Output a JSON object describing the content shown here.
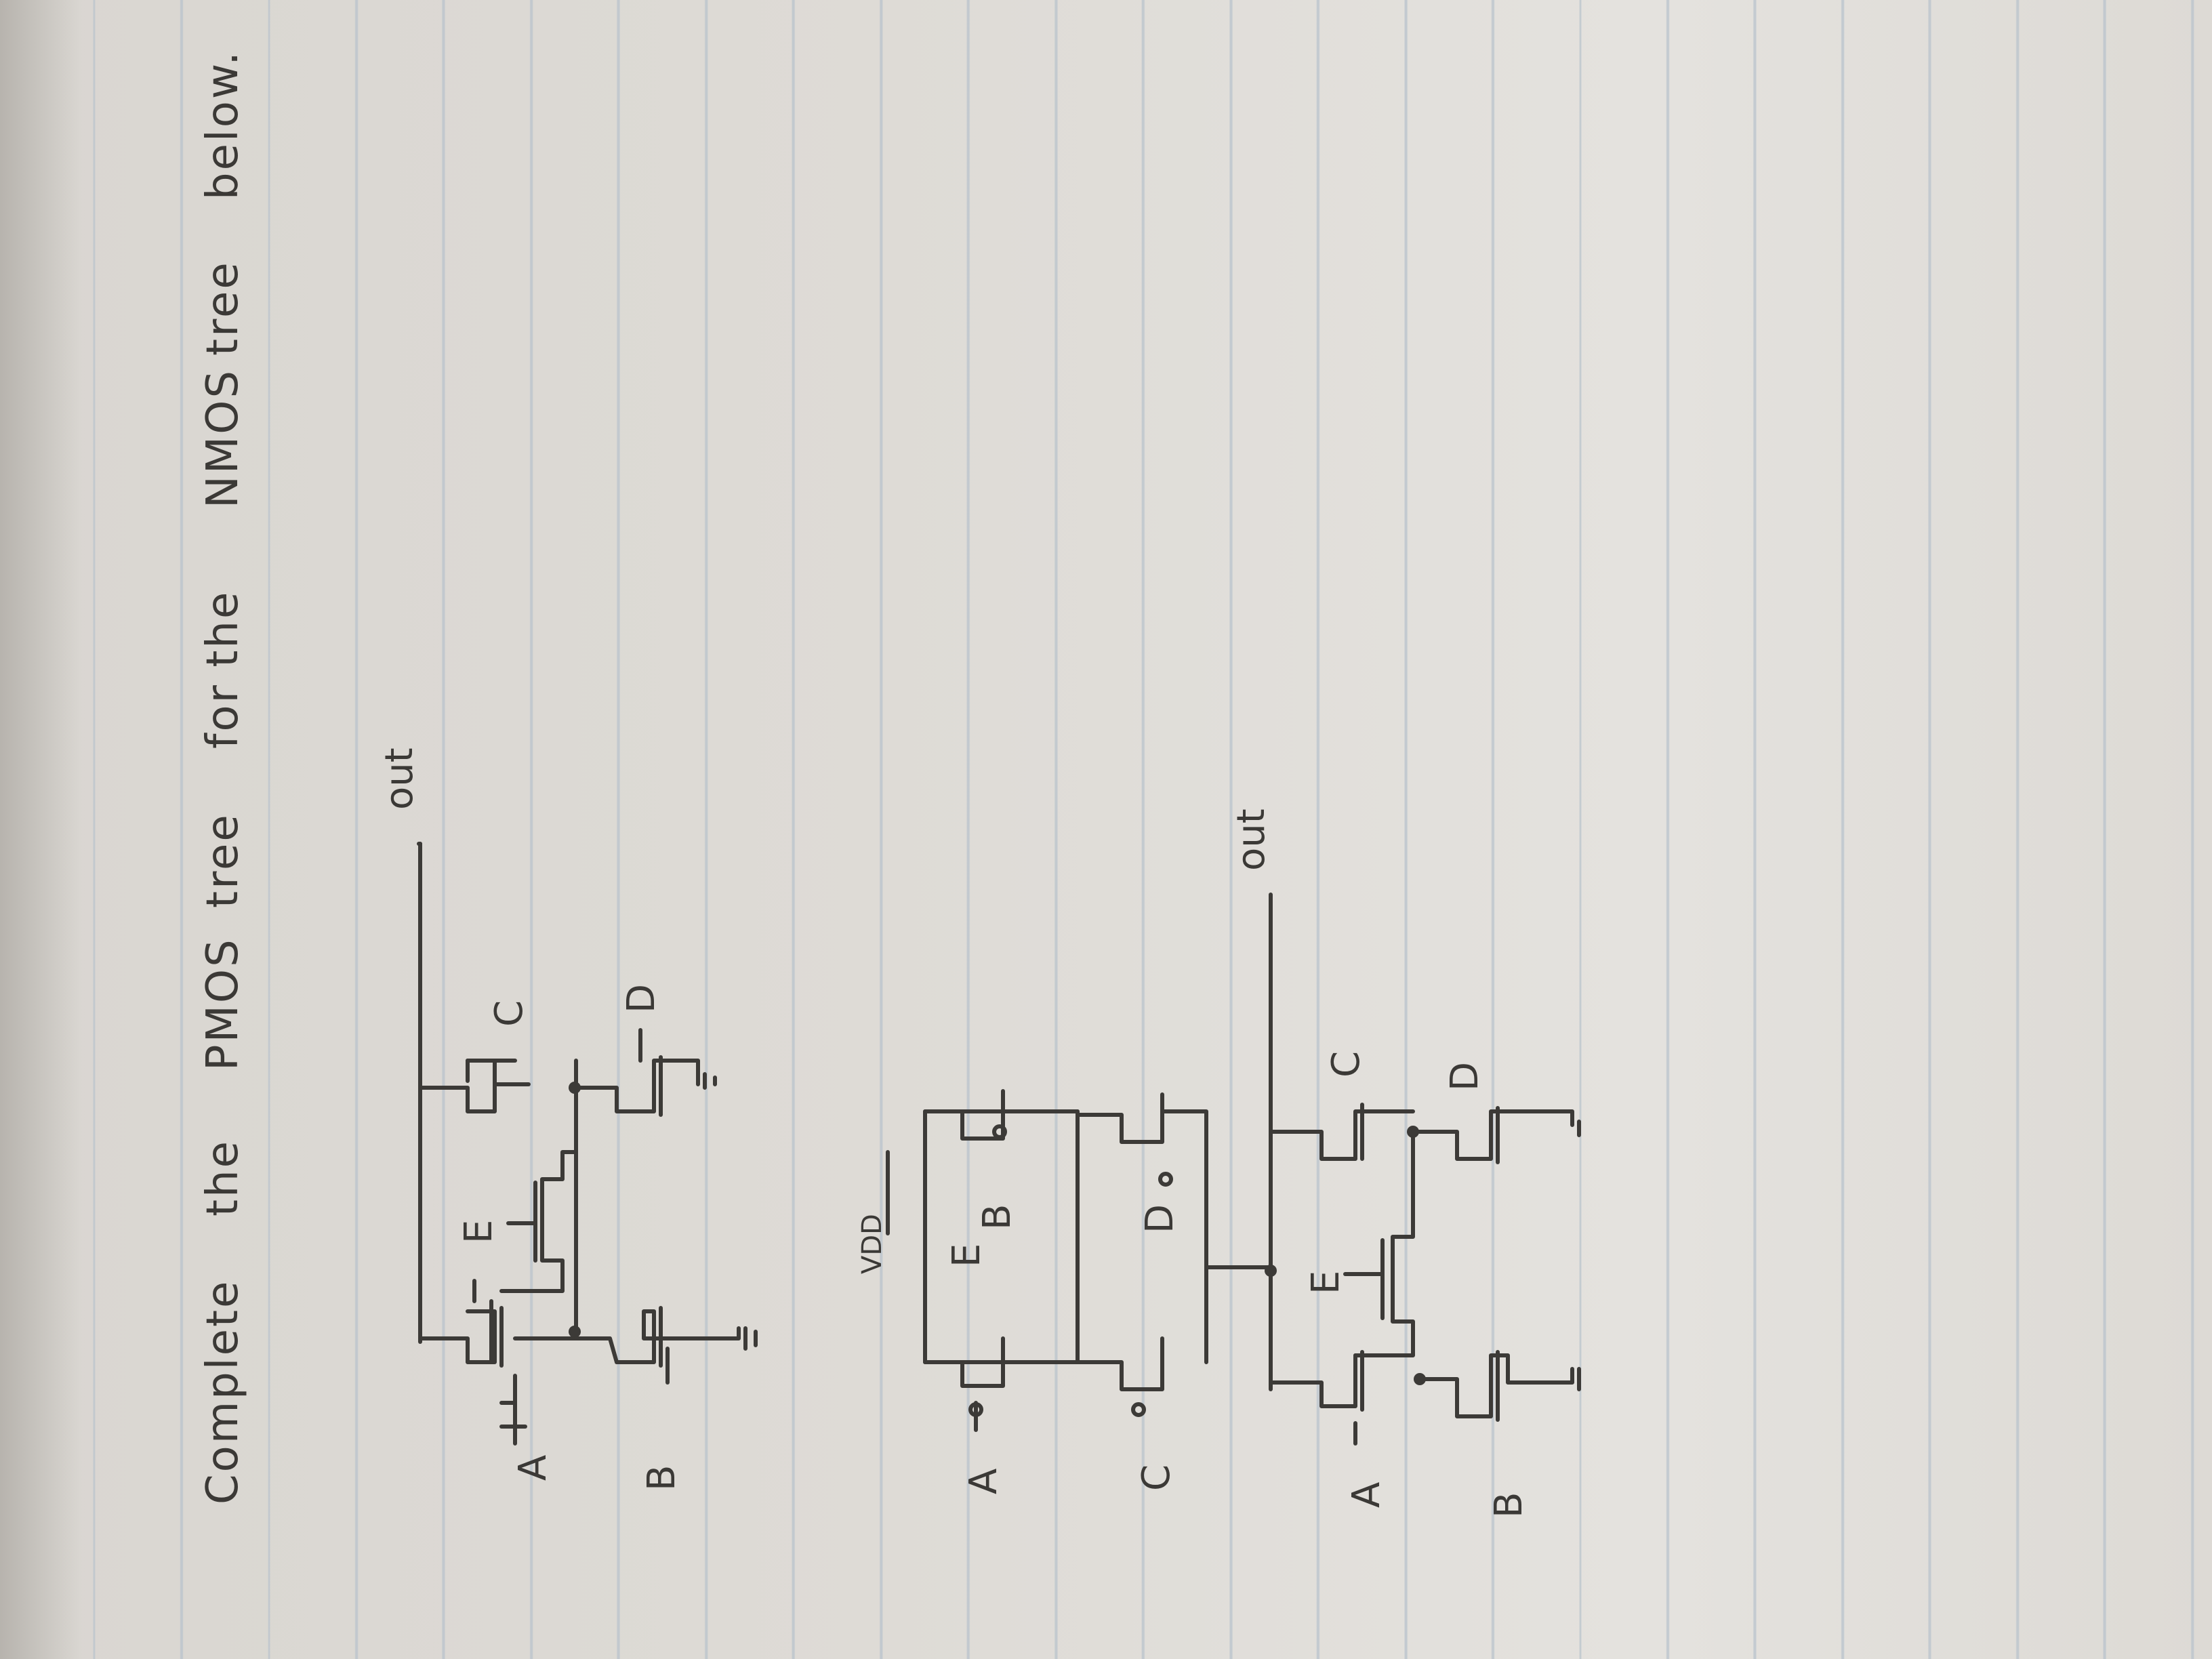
{
  "prompt": {
    "w1": "Complete",
    "w2": "the",
    "w3": "PMOS",
    "w4": "tree",
    "w5": "for the",
    "w6": "NMOS",
    "w7": "tree",
    "w8": "below."
  },
  "top_circuit": {
    "out": "out",
    "gates": {
      "a": "A",
      "b": "B",
      "c": "C",
      "d": "D",
      "e": "E"
    }
  },
  "pmos_circuit": {
    "vdd": "VDD",
    "gates": {
      "a": "A",
      "b": "B",
      "c": "C",
      "d": "D",
      "e": "E"
    }
  },
  "bottom_circuit": {
    "out": "out",
    "gates": {
      "a": "A",
      "b": "B",
      "c": "C",
      "d": "D",
      "e": "E"
    }
  },
  "colors": {
    "ink": "#3c3a37",
    "paper": "#dedbd6",
    "rule": "#b9c3cc"
  }
}
